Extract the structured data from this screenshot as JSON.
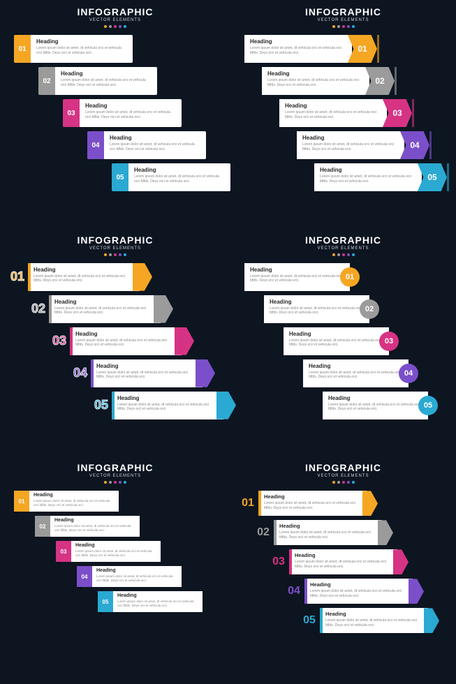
{
  "global": {
    "title": "INFOGRAPHIC",
    "subtitle": "VECTOR ELEMENTS",
    "dot_colors": [
      "#f5a623",
      "#9b9b9b",
      "#d63384",
      "#7b4fc9",
      "#2aa9d2"
    ],
    "background": "#0d1521",
    "heading_text": "Heading",
    "body_text": "Lorem ipsum dolor sit amet, dt vehicula orci et vehicula orci fdfds. Deys orci et vehicula orci."
  },
  "panels": [
    {
      "id": "p1",
      "style": "s1",
      "step_offset_start": 20,
      "step_offset_step": 35,
      "items": [
        {
          "num": "01",
          "color": "#f5a623"
        },
        {
          "num": "02",
          "color": "#9b9b9b"
        },
        {
          "num": "03",
          "color": "#d63384"
        },
        {
          "num": "04",
          "color": "#7b4fc9"
        },
        {
          "num": "05",
          "color": "#2aa9d2"
        }
      ]
    },
    {
      "id": "p2",
      "style": "s2",
      "step_offset_start": 20,
      "step_offset_step": 25,
      "items": [
        {
          "num": "01",
          "color": "#f5a623"
        },
        {
          "num": "02",
          "color": "#9b9b9b"
        },
        {
          "num": "03",
          "color": "#d63384"
        },
        {
          "num": "04",
          "color": "#7b4fc9"
        },
        {
          "num": "05",
          "color": "#2aa9d2"
        }
      ]
    },
    {
      "id": "p3",
      "style": "s3",
      "step_offset_start": 10,
      "step_offset_step": 30,
      "items": [
        {
          "num": "01",
          "color": "#f5a623"
        },
        {
          "num": "02",
          "color": "#9b9b9b"
        },
        {
          "num": "03",
          "color": "#d63384"
        },
        {
          "num": "04",
          "color": "#7b4fc9"
        },
        {
          "num": "05",
          "color": "#2aa9d2"
        }
      ]
    },
    {
      "id": "p4",
      "style": "s4",
      "step_offset_start": 20,
      "step_offset_step": 28,
      "items": [
        {
          "num": "01",
          "color": "#f5a623"
        },
        {
          "num": "02",
          "color": "#9b9b9b"
        },
        {
          "num": "03",
          "color": "#d63384"
        },
        {
          "num": "04",
          "color": "#7b4fc9"
        },
        {
          "num": "05",
          "color": "#2aa9d2"
        }
      ]
    },
    {
      "id": "p5",
      "style": "s5",
      "step_offset_start": 20,
      "step_offset_step": 30,
      "items": [
        {
          "num": "01",
          "color": "#f5a623"
        },
        {
          "num": "02",
          "color": "#9b9b9b"
        },
        {
          "num": "03",
          "color": "#d63384"
        },
        {
          "num": "04",
          "color": "#7b4fc9"
        },
        {
          "num": "05",
          "color": "#2aa9d2"
        }
      ]
    },
    {
      "id": "p6",
      "style": "s6",
      "step_offset_start": 10,
      "step_offset_step": 22,
      "items": [
        {
          "num": "01",
          "color": "#f5a623"
        },
        {
          "num": "02",
          "color": "#9b9b9b"
        },
        {
          "num": "03",
          "color": "#d63384"
        },
        {
          "num": "04",
          "color": "#7b4fc9"
        },
        {
          "num": "05",
          "color": "#2aa9d2"
        }
      ]
    }
  ]
}
